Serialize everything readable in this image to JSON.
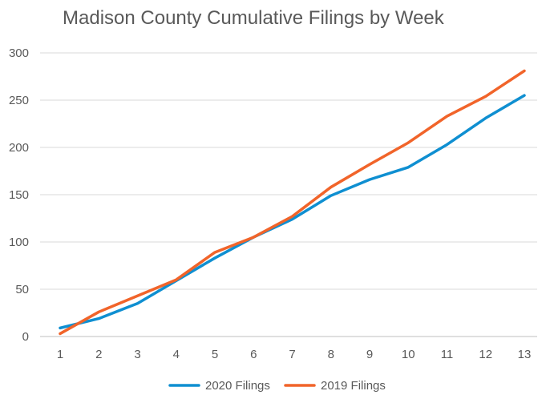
{
  "chart_data": {
    "type": "line",
    "title": "Madison County Cumulative Filings by Week",
    "xlabel": "",
    "ylabel": "",
    "categories": [
      "1",
      "2",
      "3",
      "4",
      "5",
      "6",
      "7",
      "8",
      "9",
      "10",
      "11",
      "12",
      "13"
    ],
    "ylim": [
      0,
      300
    ],
    "yticks": [
      0,
      50,
      100,
      150,
      200,
      250,
      300
    ],
    "grid": true,
    "legend_position": "bottom",
    "series": [
      {
        "name": "2020 Filings",
        "color": "#0F8FD1",
        "values": [
          9,
          19,
          35,
          59,
          83,
          105,
          124,
          149,
          166,
          179,
          203,
          231,
          255
        ]
      },
      {
        "name": "2019 Filings",
        "color": "#F1642A",
        "values": [
          3,
          26,
          43,
          60,
          89,
          105,
          127,
          158,
          182,
          205,
          233,
          254,
          281
        ]
      }
    ]
  }
}
